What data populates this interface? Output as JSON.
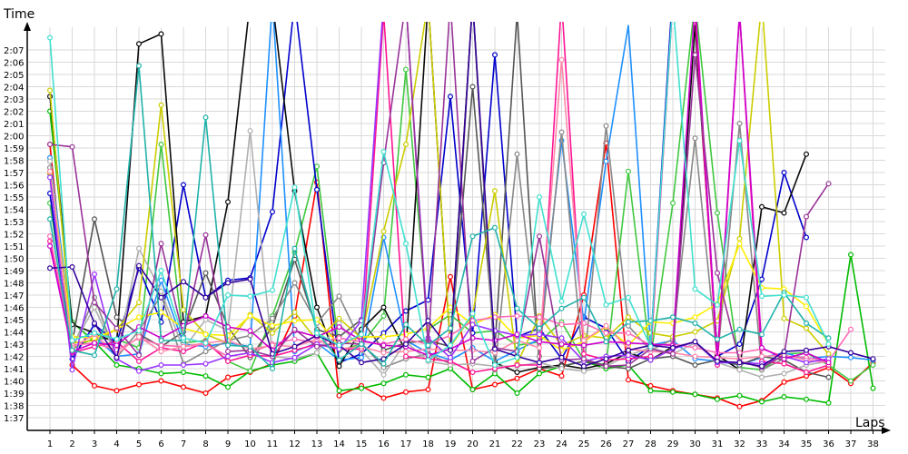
{
  "chart_data": {
    "type": "line",
    "title": "",
    "xlabel": "Laps",
    "ylabel": "Time",
    "x": [
      1,
      2,
      3,
      4,
      5,
      6,
      7,
      8,
      9,
      10,
      11,
      12,
      13,
      14,
      15,
      16,
      17,
      18,
      19,
      20,
      21,
      22,
      23,
      24,
      25,
      26,
      27,
      28,
      29,
      30,
      31,
      32,
      33,
      34,
      35,
      36,
      37,
      38
    ],
    "ylim": [
      95,
      129
    ],
    "y_ticks": [
      97,
      98,
      99,
      100,
      101,
      102,
      103,
      104,
      105,
      106,
      107,
      108,
      109,
      110,
      111,
      112,
      113,
      114,
      115,
      116,
      117,
      118,
      119,
      120,
      121,
      122,
      123,
      124,
      125,
      126,
      127
    ],
    "y_tick_labels": [
      "1:37",
      "1:38",
      "1:39",
      "1:40",
      "1:41",
      "1:42",
      "1:43",
      "1:44",
      "1:45",
      "1:46",
      "1:47",
      "1:48",
      "1:49",
      "1:50",
      "1:51",
      "1:52",
      "1:53",
      "1:54",
      "1:55",
      "1:56",
      "1:57",
      "1:58",
      "1:59",
      "2:00",
      "2:01",
      "2:02",
      "2:03",
      "2:04",
      "2:05",
      "2:06",
      "2:07"
    ],
    "grid": true,
    "legend": "none",
    "series": [
      {
        "color": "#ff0000",
        "values": [
          119.3,
          101.3,
          99.6,
          99.2,
          99.7,
          100.0,
          99.5,
          99.0,
          100.3,
          100.7,
          101.4,
          105.3,
          116.2,
          98.8,
          99.6,
          98.6,
          99.1,
          99.3,
          108.5,
          99.3,
          99.7,
          100.2,
          101.0,
          100.4,
          107.0,
          119.4,
          100.1,
          99.6,
          99.2,
          98.9,
          98.6,
          97.9,
          98.4,
          99.9,
          100.4,
          101.1,
          99.8,
          101.5
        ]
      },
      {
        "color": "#00bb00",
        "values": [
          122.0,
          104.8,
          103.2,
          101.3,
          101.0,
          100.6,
          100.7,
          100.4,
          99.5,
          100.8,
          101.3,
          101.6,
          102.3,
          99.2,
          99.4,
          99.8,
          100.5,
          100.3,
          101.0,
          99.3,
          100.6,
          99.0,
          100.6,
          101.2,
          101.6,
          101.0,
          101.3,
          99.2,
          99.1,
          98.9,
          98.5,
          98.8,
          98.3,
          98.7,
          98.5,
          98.2,
          110.3,
          99.4
        ]
      },
      {
        "color": "#40c840",
        "values": [
          114.5,
          102.6,
          103.5,
          103.4,
          102.7,
          119.3,
          103.1,
          103.3,
          101.6,
          100.8,
          105.3,
          110.5,
          117.5,
          102.5,
          103.0,
          105.3,
          125.4,
          104.2,
          105.4,
          103.9,
          104.1,
          102.9,
          103.2,
          104.8,
          101.7,
          101.3,
          117.1,
          101.8,
          114.5,
          131.0,
          113.7,
          101.1,
          100.9,
          102.2,
          102.3,
          101.3,
          100.0,
          101.3
        ]
      },
      {
        "color": "#0000cc",
        "values": [
          115.3,
          101.8,
          104.6,
          103.1,
          109.2,
          104.8,
          116.0,
          106.8,
          108.2,
          108.4,
          113.8,
          131.0,
          115.6,
          101.5,
          102.2,
          103.9,
          105.7,
          106.6,
          123.2,
          103.9,
          126.6,
          103.6,
          104.3,
          101.8,
          105.2,
          104.3,
          101.6,
          102.8,
          132.0,
          130.0,
          102.0,
          103.0,
          108.3,
          117.0,
          111.7,
          null,
          null,
          null
        ]
      },
      {
        "color": "#1e90ff",
        "values": [
          118.2,
          103.6,
          103.6,
          102.0,
          102.2,
          108.2,
          103.0,
          102.8,
          103.1,
          102.8,
          131.0,
          102.4,
          103.1,
          101.7,
          101.9,
          111.7,
          103.3,
          102.3,
          101.7,
          102.7,
          101.6,
          102.5,
          103.4,
          119.6,
          104.7,
          117.9,
          129.0,
          102.9,
          103.3,
          101.8,
          101.6,
          101.3,
          101.9,
          102.3,
          101.8,
          102.0,
          101.9,
          101.7
        ]
      },
      {
        "color": "#0a0a0a",
        "values": [
          123.2,
          104.6,
          103.9,
          103.1,
          127.5,
          128.3,
          104.8,
          105.3,
          114.6,
          131.0,
          131.0,
          115.5,
          106.0,
          101.2,
          104.2,
          106.0,
          102.4,
          131.0,
          102.7,
          131.0,
          101.5,
          100.7,
          101.1,
          101.3,
          101.0,
          101.4,
          102.3,
          101.7,
          102.8,
          129.0,
          102.1,
          100.9,
          114.2,
          113.7,
          118.5,
          null,
          null,
          null
        ]
      },
      {
        "color": "#555555",
        "values": [
          116.9,
          103.1,
          113.2,
          105.2,
          103.8,
          102.8,
          104.0,
          108.8,
          104.4,
          101.9,
          104.4,
          109.9,
          104.2,
          103.6,
          105.0,
          102.5,
          103.1,
          103.3,
          102.8,
          124.0,
          102.7,
          130.0,
          101.0,
          101.2,
          101.6,
          101.2,
          101.0,
          101.8,
          102.0,
          101.3,
          101.7,
          101.3,
          102.0,
          101.7,
          100.7,
          100.3,
          null,
          null
        ]
      },
      {
        "color": "#888888",
        "values": [
          117.4,
          102.6,
          106.8,
          101.9,
          104.1,
          107.0,
          101.4,
          102.4,
          103.3,
          103.7,
          105.1,
          108.0,
          104.7,
          106.9,
          103.1,
          101.1,
          101.8,
          102.2,
          101.4,
          131.0,
          100.9,
          118.5,
          102.0,
          120.3,
          100.8,
          120.8,
          104.5,
          102.5,
          103.4,
          119.8,
          101.7,
          121.0,
          100.9,
          101.8,
          102.3,
          101.5,
          null,
          null
        ]
      },
      {
        "color": "#b0b0b0",
        "values": [
          117.9,
          102.8,
          106.0,
          102.0,
          110.8,
          107.3,
          102.6,
          105.0,
          104.1,
          120.4,
          102.0,
          101.8,
          102.3,
          104.7,
          102.5,
          100.5,
          103.2,
          101.6,
          101.3,
          101.4,
          101.2,
          101.2,
          101.5,
          101.0,
          100.8,
          101.2,
          102.1,
          102.7,
          102.2,
          103.1,
          101.5,
          100.9,
          100.3,
          100.6,
          101.3,
          101.6,
          null,
          null
        ]
      },
      {
        "color": "#cccc00",
        "values": [
          123.7,
          103.1,
          103.3,
          104.2,
          106.4,
          122.5,
          105.8,
          103.8,
          103.1,
          105.4,
          103.9,
          105.6,
          103.3,
          105.1,
          103.5,
          112.2,
          119.3,
          131.0,
          102.8,
          105.4,
          115.5,
          101.4,
          105.3,
          102.9,
          103.7,
          103.5,
          105.2,
          103.9,
          103.6,
          104.0,
          104.9,
          111.6,
          131.0,
          105.1,
          104.3,
          102.2,
          null,
          null
        ]
      },
      {
        "color": "#ffee00",
        "values": [
          117.0,
          103.6,
          103.5,
          104.2,
          105.2,
          105.6,
          104.3,
          103.8,
          103.7,
          105.3,
          104.5,
          104.9,
          105.0,
          102.9,
          103.6,
          103.6,
          103.8,
          104.3,
          106.0,
          104.6,
          105.4,
          103.5,
          103.7,
          102.5,
          103.2,
          104.4,
          102.9,
          104.8,
          104.7,
          105.2,
          106.3,
          111.2,
          107.6,
          107.5,
          106.1,
          103.0,
          null,
          null
        ]
      },
      {
        "color": "#ff1493",
        "values": [
          111.4,
          102.3,
          102.8,
          103.2,
          101.6,
          102.7,
          102.4,
          103.2,
          101.6,
          102.1,
          102.0,
          102.5,
          103.0,
          102.6,
          102.6,
          130.0,
          102.0,
          101.8,
          101.6,
          100.7,
          101.0,
          101.3,
          101.3,
          131.0,
          102.2,
          101.7,
          101.8,
          102.0,
          131.0,
          130.0,
          101.3,
          130.0,
          101.6,
          101.4,
          100.7,
          101.3,
          null,
          null
        ]
      },
      {
        "color": "#ff69b4",
        "values": [
          111.8,
          102.9,
          103.1,
          102.5,
          103.5,
          102.9,
          102.8,
          103.0,
          102.0,
          102.3,
          103.0,
          103.4,
          103.1,
          103.5,
          103.2,
          103.0,
          103.4,
          103.0,
          103.7,
          104.9,
          105.2,
          105.3,
          105.2,
          104.6,
          104.7,
          103.9,
          103.9,
          102.9,
          103.0,
          102.7,
          102.3,
          102.3,
          102.6,
          102.0,
          101.9,
          101.6,
          104.2,
          null
        ]
      },
      {
        "color": "#ff88aa",
        "values": [
          117.1,
          102.7,
          103.8,
          102.2,
          103.6,
          102.4,
          102.8,
          103.1,
          103.3,
          102.6,
          102.9,
          102.8,
          103.4,
          102.6,
          102.8,
          102.3,
          102.4,
          102.6,
          102.5,
          102.5,
          102.3,
          103.3,
          102.7,
          126.2,
          103.3,
          104.5,
          102.6,
          102.4,
          102.3,
          102.0,
          101.9,
          101.8,
          102.0,
          102.1,
          101.7,
          101.5,
          null,
          null
        ]
      },
      {
        "color": "#9933ff",
        "values": [
          116.6,
          100.9,
          108.7,
          101.8,
          100.8,
          101.3,
          101.3,
          101.4,
          102.0,
          102.3,
          101.5,
          101.9,
          103.0,
          102.6,
          104.9,
          131.0,
          131.0,
          103.5,
          101.9,
          104.6,
          104.1,
          103.7,
          103.8,
          103.5,
          101.6,
          102.0,
          102.1,
          101.7,
          102.6,
          103.2,
          101.5,
          101.5,
          101.4,
          102.0,
          101.5,
          101.8,
          null,
          null
        ]
      },
      {
        "color": "#cc00cc",
        "values": [
          111.0,
          102.4,
          103.1,
          102.9,
          104.4,
          103.5,
          104.5,
          105.3,
          104.4,
          104.1,
          102.5,
          104.1,
          103.6,
          104.4,
          103.3,
          102.9,
          102.8,
          102.1,
          102.6,
          103.5,
          103.3,
          103.8,
          103.2,
          103.0,
          102.9,
          103.2,
          103.1,
          103.0,
          102.9,
          131.0,
          101.9,
          130.0,
          102.7,
          101.8,
          102.3,
          101.5,
          null,
          null
        ]
      },
      {
        "color": "#993399",
        "values": [
          119.3,
          119.1,
          106.4,
          104.3,
          102.1,
          111.2,
          103.6,
          111.9,
          102.4,
          102.5,
          102.0,
          104.2,
          102.8,
          103.1,
          103.0,
          117.8,
          131.0,
          102.8,
          131.0,
          101.6,
          102.7,
          102.4,
          111.8,
          101.7,
          101.8,
          101.2,
          101.3,
          102.6,
          102.2,
          126.6,
          108.8,
          101.6,
          101.1,
          102.1,
          113.4,
          116.1,
          null,
          null
        ]
      },
      {
        "color": "#330099",
        "values": [
          109.2,
          109.3,
          104.7,
          101.9,
          109.4,
          106.8,
          108.1,
          106.8,
          108.0,
          108.3,
          102.2,
          102.8,
          103.7,
          102.9,
          101.5,
          101.8,
          103.0,
          104.9,
          102.5,
          131.0,
          102.6,
          102.0,
          101.5,
          101.9,
          101.2,
          101.8,
          102.5,
          102.9,
          102.7,
          103.2,
          101.6,
          101.5,
          101.2,
          102.4,
          102.5,
          102.8,
          102.3,
          101.8
        ]
      },
      {
        "color": "#20b2aa",
        "values": [
          113.2,
          102.5,
          102.1,
          107.5,
          125.7,
          103.3,
          103.3,
          121.5,
          102.9,
          102.8,
          101.0,
          110.8,
          104.0,
          101.7,
          103.0,
          101.4,
          104.6,
          102.9,
          104.3,
          111.8,
          112.5,
          105.9,
          104.3,
          105.9,
          106.8,
          103.2,
          104.8,
          104.9,
          105.2,
          104.7,
          103.4,
          104.2,
          103.8,
          107.2,
          104.7,
          103.5,
          null,
          null
        ]
      },
      {
        "color": "#40e0d0",
        "values": [
          128.0,
          103.3,
          103.9,
          103.4,
          104.1,
          109.0,
          103.5,
          103.1,
          107.0,
          106.9,
          107.4,
          115.8,
          103.9,
          102.9,
          103.8,
          118.7,
          111.2,
          101.7,
          102.9,
          105.5,
          101.3,
          101.9,
          115.0,
          106.5,
          113.6,
          106.2,
          106.8,
          102.8,
          131.0,
          107.5,
          106.2,
          119.6,
          106.9,
          107.0,
          106.8,
          103.0,
          null,
          null
        ]
      }
    ]
  }
}
